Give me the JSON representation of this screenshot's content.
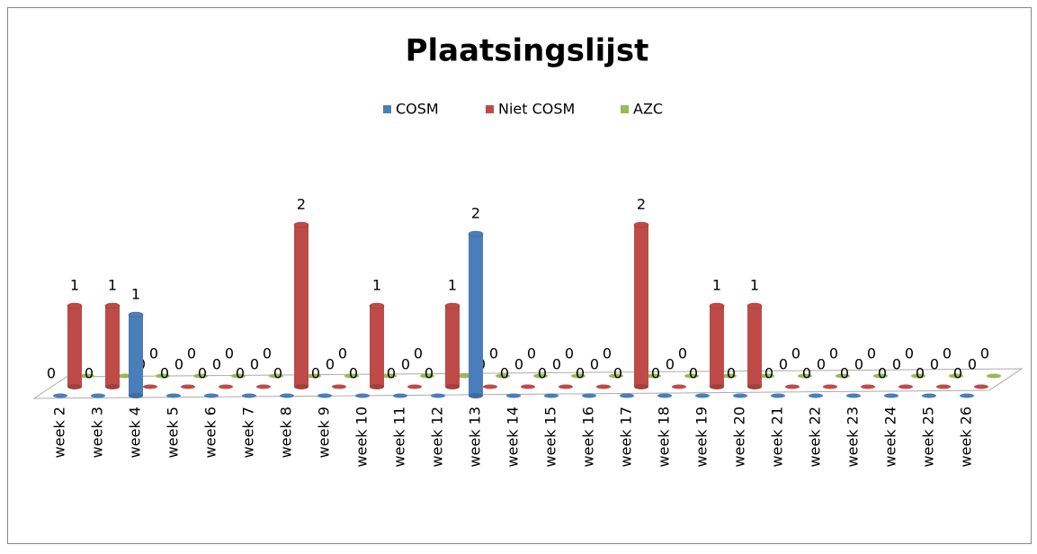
{
  "chart_data": {
    "type": "bar3d",
    "title": "Plaatsingslijst",
    "categories": [
      "week 2",
      "week 3",
      "week 4",
      "week 5",
      "week 6",
      "week 7",
      "week 8",
      "week 9",
      "week 10",
      "week 11",
      "week 12",
      "week 13",
      "week 14",
      "week 15",
      "week 16",
      "week 17",
      "week 18",
      "week 19",
      "week 20",
      "week 21",
      "week 22",
      "week 23",
      "week 24",
      "week 25",
      "week 26"
    ],
    "series": [
      {
        "name": "COSM",
        "color": "#4a7ebb",
        "values": [
          0,
          0,
          1,
          0,
          0,
          0,
          0,
          0,
          0,
          0,
          0,
          2,
          0,
          0,
          0,
          0,
          0,
          0,
          0,
          0,
          0,
          0,
          0,
          0,
          0
        ]
      },
      {
        "name": "Niet COSM",
        "color": "#be4b48",
        "values": [
          1,
          1,
          0,
          0,
          0,
          0,
          2,
          0,
          1,
          0,
          1,
          0,
          0,
          0,
          0,
          2,
          0,
          1,
          1,
          0,
          0,
          0,
          0,
          0,
          0
        ]
      },
      {
        "name": "AZC",
        "color": "#98b954",
        "values": [
          0,
          0,
          0,
          0,
          0,
          0,
          0,
          0,
          0,
          0,
          0,
          0,
          0,
          0,
          0,
          0,
          0,
          0,
          0,
          0,
          0,
          0,
          0,
          0,
          0
        ]
      }
    ],
    "legend": "top"
  }
}
